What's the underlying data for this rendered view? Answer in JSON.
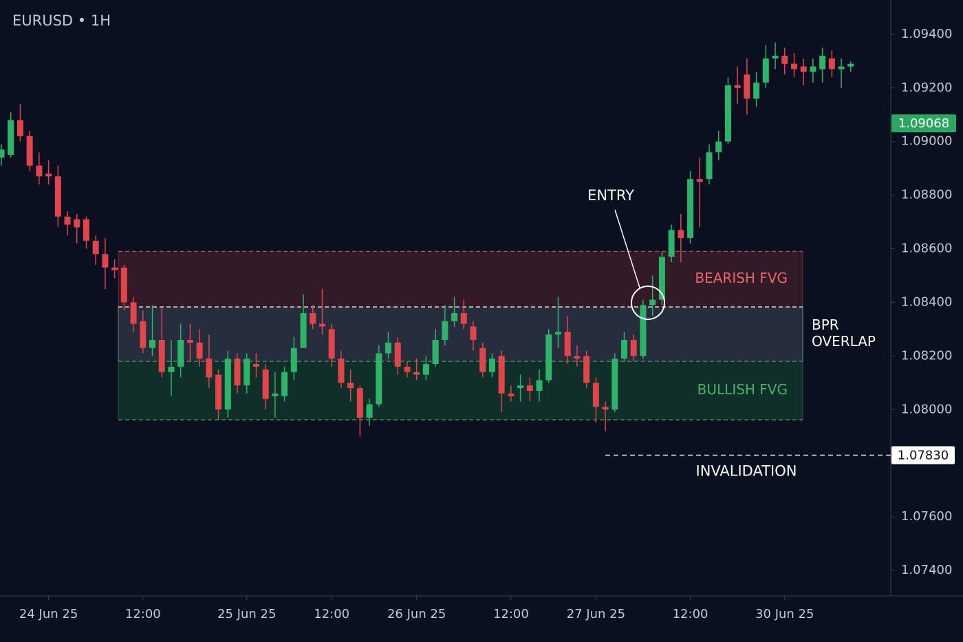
{
  "chart_data": {
    "type": "candlestick",
    "title": "EURUSD • 1H",
    "categories": [
      null,
      null,
      null,
      null,
      null,
      "24 Jun 25",
      null,
      null,
      null,
      null,
      null,
      null,
      null,
      null,
      null,
      "12:00",
      null,
      null,
      null,
      null,
      null,
      null,
      null,
      null,
      null,
      null,
      "25 Jun 25",
      null,
      null,
      null,
      null,
      null,
      null,
      null,
      null,
      "12:00",
      null,
      null,
      null,
      null,
      null,
      null,
      null,
      null,
      "26 Jun 25",
      null,
      null,
      null,
      null,
      null,
      null,
      null,
      null,
      null,
      "12:00",
      null,
      null,
      null,
      null,
      null,
      null,
      null,
      null,
      "27 Jun 25",
      null,
      null,
      null,
      null,
      null,
      null,
      null,
      null,
      null,
      "12:00",
      null,
      null,
      null,
      null,
      null,
      null,
      null,
      null,
      null,
      "30 Jun 25",
      null,
      null,
      null,
      null,
      null,
      null,
      null
    ],
    "open": [
      1.0894,
      1.0895,
      1.0908,
      1.0902,
      1.0891,
      1.0888,
      1.0887,
      1.0872,
      1.0871,
      1.0871,
      1.0863,
      1.0858,
      1.0853,
      1.0853,
      1.084,
      1.0833,
      1.0823,
      1.0826,
      1.0814,
      1.0816,
      1.0826,
      1.0825,
      1.0819,
      1.0813,
      1.08,
      1.0819,
      1.0809,
      1.0817,
      1.0815,
      1.0805,
      1.0805,
      1.0814,
      1.0823,
      1.0836,
      1.0832,
      1.083,
      1.0819,
      1.081,
      1.0808,
      1.0797,
      1.0802,
      1.0821,
      1.0825,
      1.0816,
      1.0814,
      1.0813,
      1.0817,
      1.0826,
      1.0833,
      1.0836,
      1.0831,
      1.0823,
      1.0814,
      1.082,
      1.0806,
      1.0808,
      1.0809,
      1.0807,
      1.0811,
      1.0828,
      1.0829,
      1.082,
      1.082,
      1.081,
      1.0801,
      1.08,
      1.0819,
      1.0826,
      1.082,
      1.0839,
      1.0841,
      1.0857,
      1.0867,
      1.0864,
      1.0886,
      1.0886,
      1.0896,
      1.09,
      1.0921,
      1.0925,
      1.0916,
      1.0922,
      1.0931,
      1.0932,
      1.0929,
      1.0928,
      1.0926,
      1.0927,
      1.0931,
      1.0927,
      1.0928
    ],
    "high": [
      1.0899,
      1.0911,
      1.0914,
      1.0904,
      1.0896,
      1.0893,
      1.0891,
      1.0874,
      1.0873,
      1.0872,
      1.0865,
      1.0864,
      1.0856,
      1.0854,
      1.0842,
      1.0837,
      1.0839,
      1.0838,
      1.0826,
      1.0832,
      1.0832,
      1.083,
      1.0828,
      1.0815,
      1.0822,
      1.0821,
      1.0821,
      1.0821,
      1.0817,
      1.0814,
      1.0816,
      1.0827,
      1.0843,
      1.0839,
      1.0845,
      1.0832,
      1.0822,
      1.0815,
      1.0809,
      1.0804,
      1.0824,
      1.0829,
      1.0827,
      1.0818,
      1.0819,
      1.082,
      1.083,
      1.0839,
      1.0842,
      1.0841,
      1.0833,
      1.0825,
      1.0821,
      1.0822,
      1.0809,
      1.0813,
      1.0812,
      1.0815,
      1.083,
      1.0842,
      1.0835,
      1.0824,
      1.0822,
      1.0812,
      1.0803,
      1.0821,
      1.0829,
      1.0828,
      1.0841,
      1.085,
      1.0859,
      1.0869,
      1.0873,
      1.0889,
      1.0894,
      1.0899,
      1.0904,
      1.0924,
      1.0928,
      1.0931,
      1.0926,
      1.0936,
      1.0937,
      1.0935,
      1.0933,
      1.0931,
      1.0931,
      1.0935,
      1.0934,
      1.0931,
      1.093
    ],
    "low": [
      1.0891,
      1.0894,
      1.09,
      1.0889,
      1.0884,
      1.0884,
      1.0868,
      1.0865,
      1.0862,
      1.086,
      1.0854,
      1.0845,
      1.0849,
      1.0837,
      1.0829,
      1.0821,
      1.082,
      1.0812,
      1.0805,
      1.0812,
      1.0818,
      1.0816,
      1.0808,
      1.0796,
      1.0797,
      1.0806,
      1.0806,
      1.0812,
      1.08,
      1.0797,
      1.0803,
      1.0811,
      1.0823,
      1.083,
      1.0828,
      1.0816,
      1.0808,
      1.0803,
      1.079,
      1.0794,
      1.0801,
      1.0819,
      1.0813,
      1.0812,
      1.0811,
      1.0811,
      1.0816,
      1.0824,
      1.0831,
      1.083,
      1.0822,
      1.0812,
      1.0812,
      1.0799,
      1.0803,
      1.0803,
      1.0803,
      1.0803,
      1.081,
      1.0823,
      1.0817,
      1.0816,
      1.0808,
      1.0795,
      1.0792,
      1.0799,
      1.0818,
      1.0818,
      1.0819,
      1.0835,
      1.0839,
      1.0855,
      1.0855,
      1.0862,
      1.0868,
      1.0884,
      1.0893,
      1.0899,
      1.0914,
      1.091,
      1.0913,
      1.092,
      1.0927,
      1.0925,
      1.0924,
      1.0921,
      1.0922,
      1.0922,
      1.0924,
      1.092,
      1.0926
    ],
    "close": [
      1.0897,
      1.0908,
      1.0902,
      1.0891,
      1.0887,
      1.0887,
      1.0872,
      1.0869,
      1.0868,
      1.0863,
      1.0858,
      1.0853,
      1.0852,
      1.084,
      1.0832,
      1.0823,
      1.0826,
      1.0814,
      1.0816,
      1.0826,
      1.0825,
      1.0819,
      1.0812,
      1.08,
      1.0819,
      1.0809,
      1.0819,
      1.0816,
      1.0804,
      1.0806,
      1.0814,
      1.0823,
      1.0836,
      1.0832,
      1.0831,
      1.0819,
      1.081,
      1.0808,
      1.0797,
      1.0802,
      1.0821,
      1.0825,
      1.0816,
      1.0814,
      1.0813,
      1.0817,
      1.0826,
      1.0833,
      1.0836,
      1.0832,
      1.0826,
      1.0814,
      1.0819,
      1.0806,
      1.0805,
      1.0809,
      1.0807,
      1.0811,
      1.0828,
      1.0829,
      1.082,
      1.0819,
      1.081,
      1.0801,
      1.08,
      1.0819,
      1.0826,
      1.082,
      1.0839,
      1.0841,
      1.0857,
      1.0867,
      1.0864,
      1.0886,
      1.0885,
      1.0896,
      1.09,
      1.0921,
      1.092,
      1.0916,
      1.0922,
      1.0931,
      1.0932,
      1.0929,
      1.0927,
      1.0926,
      1.0928,
      1.0932,
      1.0927,
      1.0928,
      1.0929
    ],
    "up_color": "#2eb36a",
    "down_color": "#e0454b",
    "ylim": [
      1.07305,
      1.09528
    ],
    "yticks": [
      {
        "value": 1.094,
        "label": "1.09400"
      },
      {
        "value": 1.092,
        "label": "1.09200"
      },
      {
        "value": 1.09,
        "label": "1.09000"
      },
      {
        "value": 1.088,
        "label": "1.08800"
      },
      {
        "value": 1.086,
        "label": "1.08600"
      },
      {
        "value": 1.084,
        "label": "1.08400"
      },
      {
        "value": 1.082,
        "label": "1.08200"
      },
      {
        "value": 1.08,
        "label": "1.08000"
      },
      {
        "value": 1.076,
        "label": "1.07600"
      },
      {
        "value": 1.074,
        "label": "1.07400"
      }
    ],
    "zones": [
      {
        "label": "BEARISH FVG",
        "low": 1.08383,
        "high": 1.0859,
        "color": "#3a1c28",
        "border": "#c2474c",
        "text_color": "#e8686a"
      },
      {
        "label": [
          "BPR",
          "OVERLAP"
        ],
        "low": 1.0818,
        "high": 1.08383,
        "color": "#2b3444",
        "border": "#e8e8e8",
        "text_color": "#ffffff"
      },
      {
        "label": "BULLISH FVG",
        "low": 1.07962,
        "high": 1.0818,
        "color": "#12352a",
        "border": "#3f9a5e",
        "text_color": "#46b36a"
      }
    ],
    "entry_label": "ENTRY",
    "current_price": {
      "value": 1.09068,
      "label": "1.09068",
      "color": "#2aa85f"
    },
    "invalidation": {
      "value": 1.0783,
      "label": "1.07830",
      "text": "INVALIDATION"
    }
  }
}
